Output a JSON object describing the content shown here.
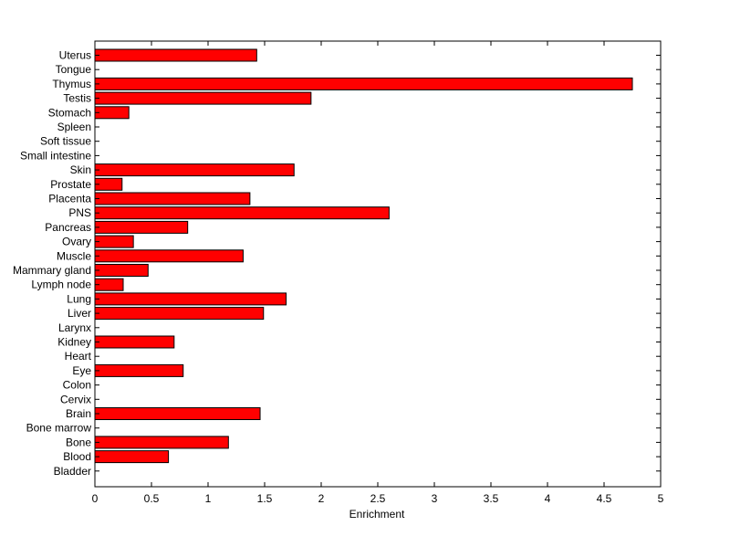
{
  "chart_data": {
    "type": "bar",
    "orientation": "horizontal",
    "categories": [
      "Uterus",
      "Tongue",
      "Thymus",
      "Testis",
      "Stomach",
      "Spleen",
      "Soft tissue",
      "Small intestine",
      "Skin",
      "Prostate",
      "Placenta",
      "PNS",
      "Pancreas",
      "Ovary",
      "Muscle",
      "Mammary gland",
      "Lymph node",
      "Lung",
      "Liver",
      "Larynx",
      "Kidney",
      "Heart",
      "Eye",
      "Colon",
      "Cervix",
      "Brain",
      "Bone marrow",
      "Bone",
      "Blood",
      "Bladder"
    ],
    "values": [
      1.43,
      0,
      4.75,
      1.91,
      0.3,
      0,
      0,
      0,
      1.76,
      0.24,
      1.37,
      2.6,
      0.82,
      0.34,
      1.31,
      0.47,
      0.25,
      1.69,
      1.49,
      0,
      0.7,
      0,
      0.78,
      0,
      0,
      1.46,
      0,
      1.18,
      0.65,
      0
    ],
    "xlabel": "Enrichment",
    "ylabel": "",
    "title": "",
    "xlim": [
      0,
      5
    ],
    "xticks": [
      "0",
      "0.5",
      "1",
      "1.5",
      "2",
      "2.5",
      "3",
      "3.5",
      "4",
      "4.5",
      "5"
    ],
    "bar_color": "#ff0000",
    "edge_color": "#000000",
    "grid": false,
    "legend": false
  }
}
